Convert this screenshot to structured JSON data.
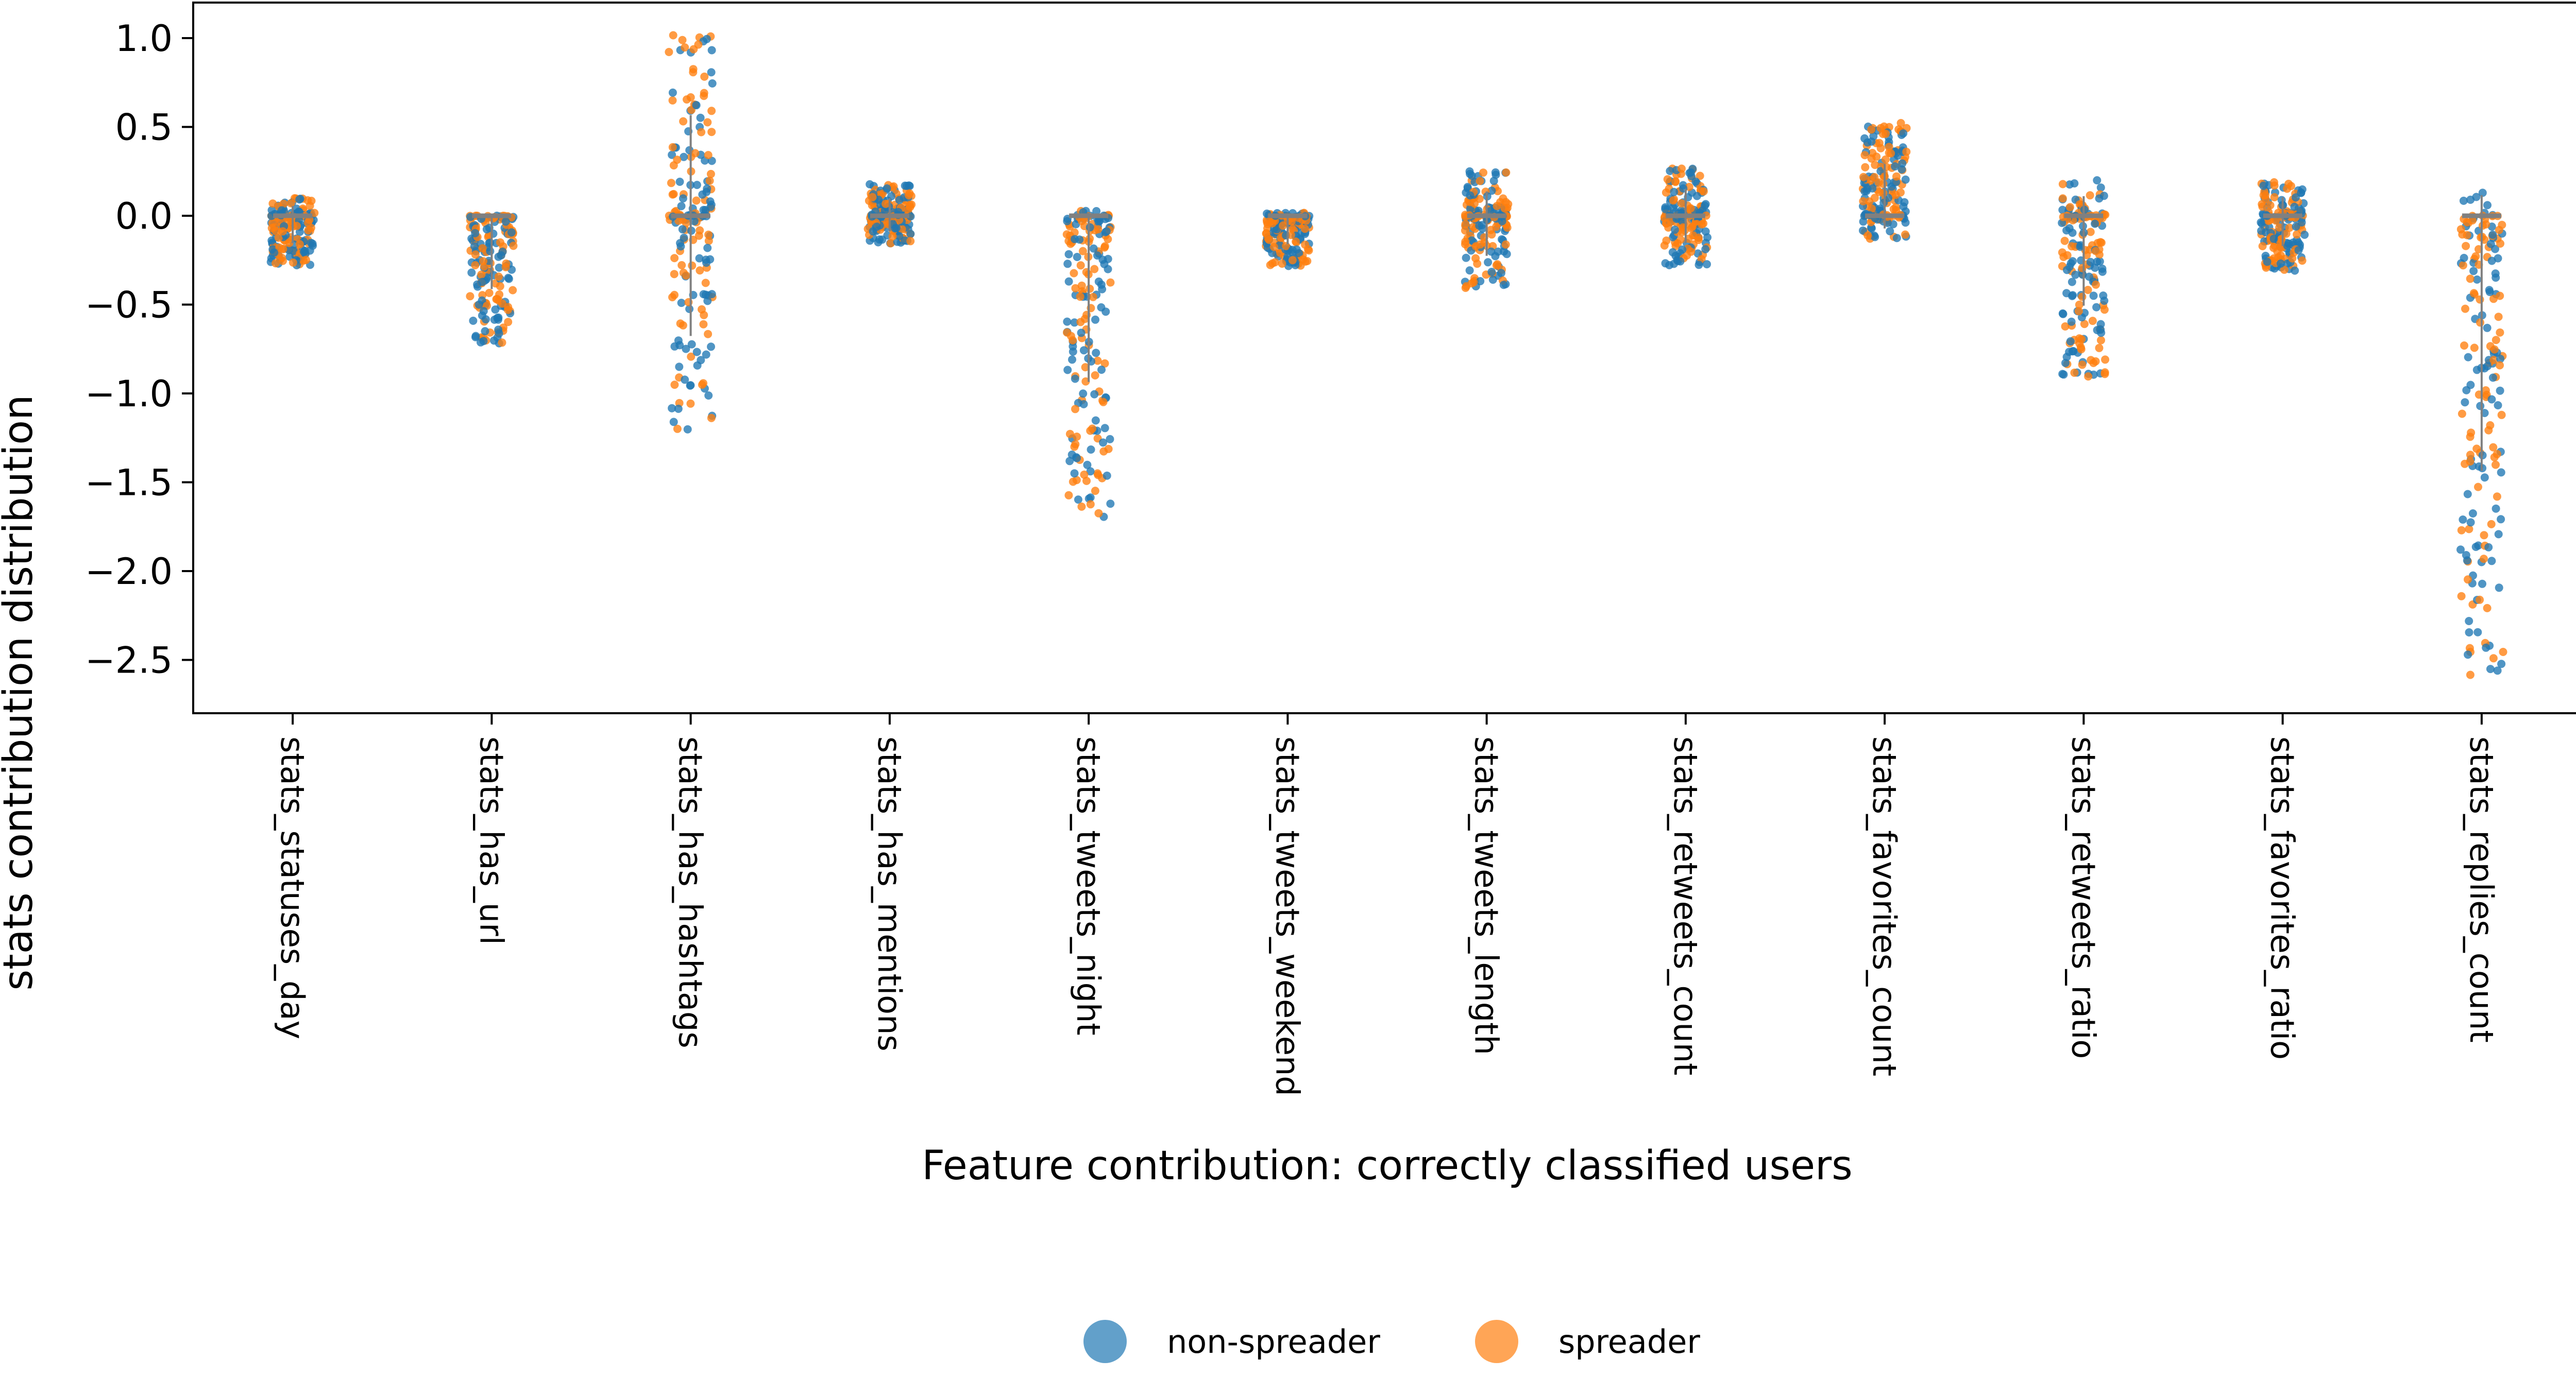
{
  "chart_data": {
    "type": "scatter",
    "subtype": "strip",
    "xlabel": "Feature contribution: correctly classified users",
    "ylabel": "stats contribution distribution",
    "ylim": [
      -2.8,
      1.2
    ],
    "yticks": [
      1.0,
      0.5,
      0.0,
      -0.5,
      -1.0,
      -1.5,
      -2.0,
      -2.5
    ],
    "ytick_labels": [
      "1.0",
      "0.5",
      "0.0",
      "−0.5",
      "−1.0",
      "−1.5",
      "−2.0",
      "−2.5"
    ],
    "grid": false,
    "legend": {
      "placement": "bottom-center"
    },
    "categories": [
      "stats_statuses_day",
      "stats_has_url",
      "stats_has_hashtags",
      "stats_has_mentions",
      "stats_tweets_night",
      "stats_tweets_weekend",
      "stats_tweets_length",
      "stats_retweets_count",
      "stats_favorites_count",
      "stats_retweets_ratio",
      "stats_favorites_ratio",
      "stats_replies_count"
    ],
    "category_ranges": [
      {
        "min": -0.28,
        "max": 0.1
      },
      {
        "min": -0.75,
        "max": 0.0
      },
      {
        "min": -1.23,
        "max": 1.03
      },
      {
        "min": -0.16,
        "max": 0.18
      },
      {
        "min": -1.7,
        "max": 0.03
      },
      {
        "min": -0.29,
        "max": 0.02
      },
      {
        "min": -0.41,
        "max": 0.25
      },
      {
        "min": -0.28,
        "max": 0.27
      },
      {
        "min": -0.13,
        "max": 0.53
      },
      {
        "min": -0.92,
        "max": 0.2
      },
      {
        "min": -0.31,
        "max": 0.19
      },
      {
        "min": -2.61,
        "max": 0.21
      }
    ],
    "series": [
      {
        "name": "non-spreader",
        "color": "#1f77b4"
      },
      {
        "name": "spreader",
        "color": "#ff7f0e"
      }
    ],
    "points_per_series_per_category": 90
  }
}
